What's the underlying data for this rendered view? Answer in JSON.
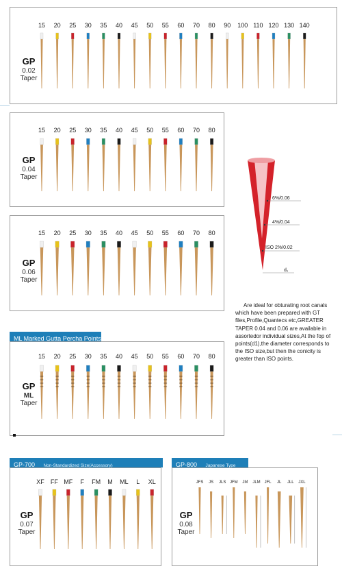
{
  "panels": [
    {
      "id": "gp002",
      "label": {
        "gp": "GP",
        "lines": [
          "0.02",
          "Taper"
        ]
      },
      "sizes": [
        "15",
        "20",
        "25",
        "30",
        "35",
        "40",
        "45",
        "50",
        "55",
        "60",
        "70",
        "80",
        "90",
        "100",
        "110",
        "120",
        "130",
        "140"
      ],
      "colors": [
        "#f0f0f0",
        "#e7c21a",
        "#c9232b",
        "#1f7fc0",
        "#2a8f62",
        "#1a1a1a",
        "#f0f0f0",
        "#e7c21a",
        "#c9232b",
        "#1f7fc0",
        "#2a8f62",
        "#1a1a1a",
        "#f0f0f0",
        "#e7c21a",
        "#c9232b",
        "#1f7fc0",
        "#2a8f62",
        "#1a1a1a"
      ]
    },
    {
      "id": "gp004",
      "label": {
        "gp": "GP",
        "lines": [
          "0.04",
          "Taper"
        ]
      },
      "sizes": [
        "15",
        "20",
        "25",
        "30",
        "35",
        "40",
        "45",
        "50",
        "55",
        "60",
        "70",
        "80"
      ],
      "colors": [
        "#f0f0f0",
        "#e7c21a",
        "#c9232b",
        "#1f7fc0",
        "#2a8f62",
        "#1a1a1a",
        "#f0f0f0",
        "#e7c21a",
        "#c9232b",
        "#1f7fc0",
        "#2a8f62",
        "#1a1a1a"
      ]
    },
    {
      "id": "gp006",
      "label": {
        "gp": "GP",
        "lines": [
          "0.06",
          "Taper"
        ]
      },
      "sizes": [
        "15",
        "20",
        "25",
        "30",
        "35",
        "40",
        "45",
        "50",
        "55",
        "60",
        "70",
        "80"
      ],
      "colors": [
        "#f0f0f0",
        "#e7c21a",
        "#c9232b",
        "#1f7fc0",
        "#2a8f62",
        "#1a1a1a",
        "#f0f0f0",
        "#e7c21a",
        "#c9232b",
        "#1f7fc0",
        "#2a8f62",
        "#1a1a1a"
      ]
    },
    {
      "id": "ml",
      "label": {
        "gp": "GP",
        "lines": [
          "ML",
          "Taper"
        ]
      },
      "banner": "ML Marked Gutta Percha Points",
      "sizes": [
        "15",
        "20",
        "25",
        "30",
        "35",
        "40",
        "45",
        "50",
        "55",
        "60",
        "70",
        "80"
      ],
      "colors": [
        "#f0f0f0",
        "#e7c21a",
        "#c9232b",
        "#1f7fc0",
        "#2a8f62",
        "#1a1a1a",
        "#f0f0f0",
        "#e7c21a",
        "#c9232b",
        "#1f7fc0",
        "#2a8f62",
        "#1a1a1a"
      ]
    },
    {
      "id": "gp700",
      "label": {
        "gp": "GP",
        "lines": [
          "0.07",
          "Taper"
        ]
      },
      "banner": "GP-700",
      "banner_extra": "Non-Standardized Size(Accessory)",
      "sizes": [
        "XF",
        "FF",
        "MF",
        "F",
        "FM",
        "M",
        "ML",
        "L",
        "XL"
      ],
      "colors": [
        "#f0f0f0",
        "#e7c21a",
        "#c9232b",
        "#1f7fc0",
        "#2a8f62",
        "#1a1a1a",
        "#f0f0f0",
        "#e7c21a",
        "#c9232b"
      ]
    },
    {
      "id": "gp800",
      "label": {
        "gp": "GP",
        "lines": [
          "0.08",
          "Taper"
        ]
      },
      "banner": "GP-800",
      "banner_extra": "Japanese Type",
      "sizes": [
        "JFS",
        "JS",
        "JLS",
        "JFM",
        "JM",
        "JLM",
        "JFL",
        "JL",
        "JLL",
        "JXL"
      ],
      "colors": [
        "#d9a066",
        "#d9a066",
        "#d9a066",
        "#d9a066",
        "#d9a066",
        "#d9a066",
        "#d9a066",
        "#d9a066",
        "#d9a066",
        "#d9a066"
      ]
    }
  ],
  "cone_diagram": {
    "labels": [
      "6%/0.06",
      "4%/0.04",
      "ISO 2%/0.02",
      "d₁"
    ],
    "colors": {
      "red": "#d4222a",
      "pink": "#f3b3b6"
    }
  },
  "description": "Are ideal for obturating root canals which have been prepared with GT files,Profile,Quantecs etc,GREATER TAPER 0.04 and 0.06 are available in assortedor individual sizes,At the fop of points(d1),the diameter corresponds to the ISO size,but then the conicity is greater than ISO points.",
  "point_color": "#c8965a"
}
